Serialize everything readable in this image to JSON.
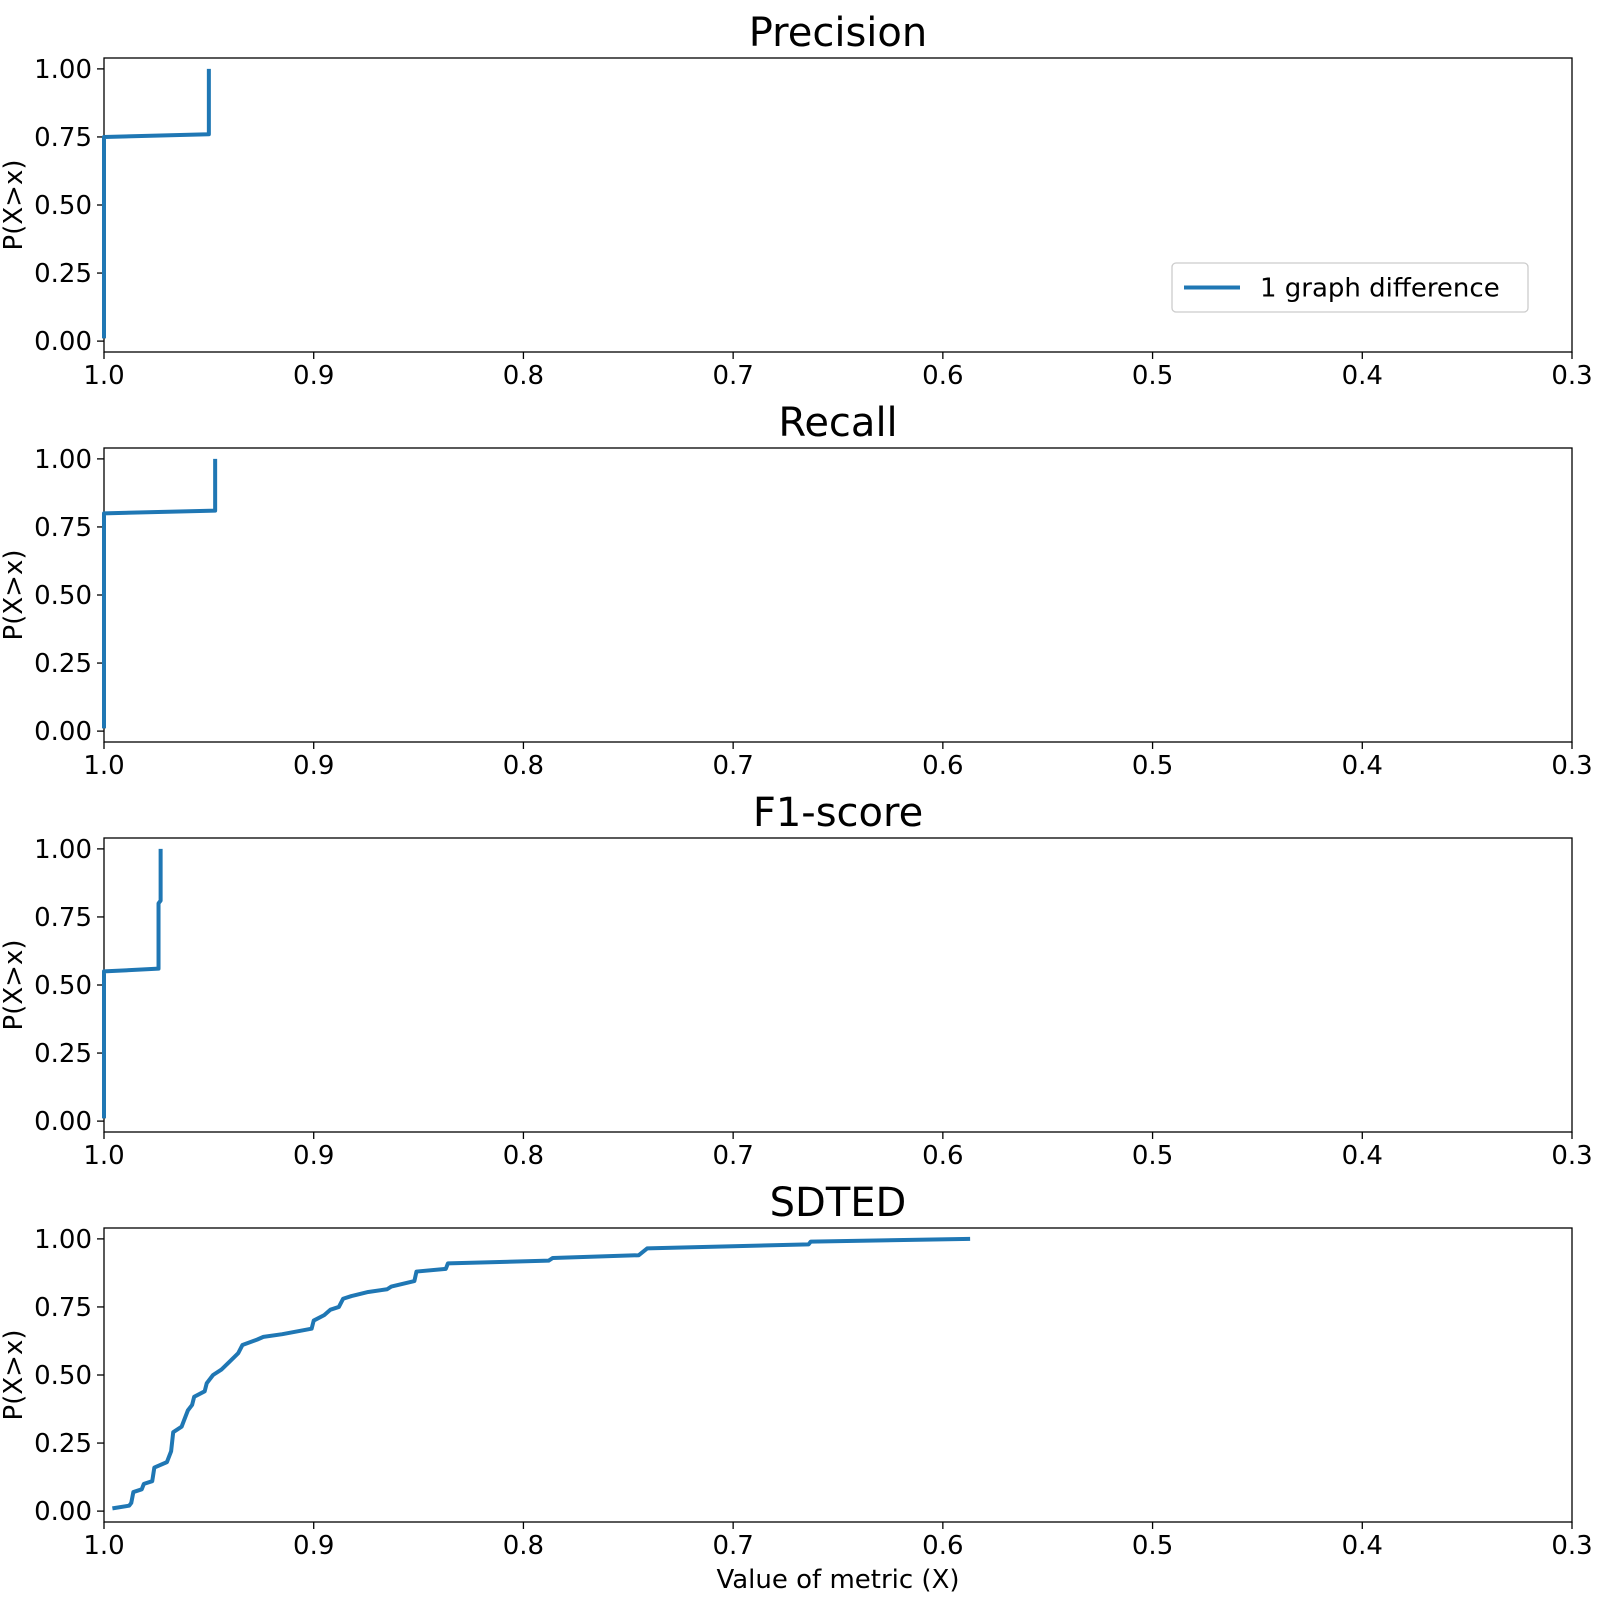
{
  "figure": {
    "xlabel": "Value of metric (X)",
    "legend_label": "1 graph difference"
  },
  "chart_data": [
    {
      "type": "line",
      "title": "Precision",
      "xlabel": "",
      "ylabel": "P(X>x)",
      "xlim": [
        1.0,
        0.3
      ],
      "ylim": [
        -0.04,
        1.04
      ],
      "x_reversed": true,
      "xticks": [
        "1.0",
        "0.9",
        "0.8",
        "0.7",
        "0.6",
        "0.5",
        "0.4",
        "0.3"
      ],
      "yticks": [
        "0.00",
        "0.25",
        "0.50",
        "0.75",
        "1.00"
      ],
      "grid": false,
      "legend": "lower-right",
      "series": [
        {
          "name": "1 graph difference",
          "color": "#1f77b4",
          "points": [
            [
              1.0,
              0.01
            ],
            [
              1.0,
              0.75
            ],
            [
              0.95,
              0.76
            ],
            [
              0.95,
              1.0
            ]
          ]
        }
      ]
    },
    {
      "type": "line",
      "title": "Recall",
      "xlabel": "",
      "ylabel": "P(X>x)",
      "xlim": [
        1.0,
        0.3
      ],
      "ylim": [
        -0.04,
        1.04
      ],
      "x_reversed": true,
      "xticks": [
        "1.0",
        "0.9",
        "0.8",
        "0.7",
        "0.6",
        "0.5",
        "0.4",
        "0.3"
      ],
      "yticks": [
        "0.00",
        "0.25",
        "0.50",
        "0.75",
        "1.00"
      ],
      "grid": false,
      "series": [
        {
          "name": "1 graph difference",
          "color": "#1f77b4",
          "points": [
            [
              1.0,
              0.01
            ],
            [
              1.0,
              0.8
            ],
            [
              0.947,
              0.81
            ],
            [
              0.947,
              1.0
            ]
          ]
        }
      ]
    },
    {
      "type": "line",
      "title": "F1-score",
      "xlabel": "",
      "ylabel": "P(X>x)",
      "xlim": [
        1.0,
        0.3
      ],
      "ylim": [
        -0.04,
        1.04
      ],
      "x_reversed": true,
      "xticks": [
        "1.0",
        "0.9",
        "0.8",
        "0.7",
        "0.6",
        "0.5",
        "0.4",
        "0.3"
      ],
      "yticks": [
        "0.00",
        "0.25",
        "0.50",
        "0.75",
        "1.00"
      ],
      "grid": false,
      "series": [
        {
          "name": "1 graph difference",
          "color": "#1f77b4",
          "points": [
            [
              1.0,
              0.01
            ],
            [
              1.0,
              0.55
            ],
            [
              0.974,
              0.56
            ],
            [
              0.974,
              0.8
            ],
            [
              0.973,
              0.81
            ],
            [
              0.973,
              1.0
            ]
          ]
        }
      ]
    },
    {
      "type": "line",
      "title": "SDTED",
      "xlabel": "Value of metric (X)",
      "ylabel": "P(X>x)",
      "xlim": [
        1.0,
        0.3
      ],
      "ylim": [
        -0.04,
        1.04
      ],
      "x_reversed": true,
      "xticks": [
        "1.0",
        "0.9",
        "0.8",
        "0.7",
        "0.6",
        "0.5",
        "0.4",
        "0.3"
      ],
      "yticks": [
        "0.00",
        "0.25",
        "0.50",
        "0.75",
        "1.00"
      ],
      "grid": false,
      "series": [
        {
          "name": "1 graph difference",
          "color": "#1f77b4",
          "points": [
            [
              0.996,
              0.01
            ],
            [
              0.988,
              0.02
            ],
            [
              0.987,
              0.03
            ],
            [
              0.986,
              0.07
            ],
            [
              0.982,
              0.08
            ],
            [
              0.981,
              0.1
            ],
            [
              0.977,
              0.11
            ],
            [
              0.976,
              0.16
            ],
            [
              0.97,
              0.18
            ],
            [
              0.968,
              0.22
            ],
            [
              0.967,
              0.29
            ],
            [
              0.963,
              0.31
            ],
            [
              0.962,
              0.33
            ],
            [
              0.96,
              0.37
            ],
            [
              0.958,
              0.39
            ],
            [
              0.957,
              0.42
            ],
            [
              0.952,
              0.44
            ],
            [
              0.951,
              0.47
            ],
            [
              0.948,
              0.5
            ],
            [
              0.944,
              0.52
            ],
            [
              0.94,
              0.55
            ],
            [
              0.936,
              0.58
            ],
            [
              0.934,
              0.61
            ],
            [
              0.927,
              0.63
            ],
            [
              0.924,
              0.64
            ],
            [
              0.915,
              0.65
            ],
            [
              0.901,
              0.67
            ],
            [
              0.9,
              0.7
            ],
            [
              0.895,
              0.72
            ],
            [
              0.892,
              0.74
            ],
            [
              0.888,
              0.75
            ],
            [
              0.886,
              0.78
            ],
            [
              0.882,
              0.79
            ],
            [
              0.874,
              0.805
            ],
            [
              0.865,
              0.815
            ],
            [
              0.863,
              0.825
            ],
            [
              0.852,
              0.845
            ],
            [
              0.851,
              0.88
            ],
            [
              0.837,
              0.89
            ],
            [
              0.836,
              0.91
            ],
            [
              0.788,
              0.92
            ],
            [
              0.786,
              0.93
            ],
            [
              0.745,
              0.94
            ],
            [
              0.741,
              0.965
            ],
            [
              0.664,
              0.98
            ],
            [
              0.663,
              0.99
            ],
            [
              0.587,
              1.0
            ]
          ]
        }
      ]
    }
  ]
}
